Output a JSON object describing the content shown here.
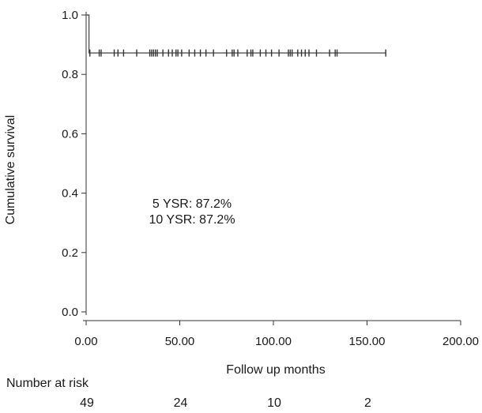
{
  "chart_data": {
    "type": "line",
    "title": "",
    "xlabel": "Follow up months",
    "ylabel": "Cumulative survival",
    "xlim": [
      0,
      200
    ],
    "ylim": [
      0,
      1.0
    ],
    "x_ticks": [
      0,
      50,
      100,
      150,
      200
    ],
    "x_tick_labels": [
      "0.00",
      "50.00",
      "100.00",
      "150.00",
      "200.00"
    ],
    "y_ticks": [
      0.0,
      0.2,
      0.4,
      0.6,
      0.8,
      1.0
    ],
    "y_tick_labels": [
      "0.0",
      "0.2",
      "0.4",
      "0.6",
      "0.8",
      "1.0"
    ],
    "grid": false,
    "series": [
      {
        "survival_steps": [
          {
            "x": 0,
            "y": 1.0
          },
          {
            "x": 1.5,
            "y": 1.0
          },
          {
            "x": 1.5,
            "y": 0.872
          },
          {
            "x": 160,
            "y": 0.872
          }
        ],
        "censored_x": [
          2,
          7,
          8,
          15,
          17,
          20,
          27,
          34,
          35,
          36,
          37,
          38,
          41,
          44,
          46,
          48,
          49,
          51,
          55,
          58,
          61,
          64,
          68,
          75,
          78,
          79,
          81,
          86,
          88,
          89,
          93,
          96,
          99,
          103,
          108,
          109,
          110,
          113,
          115,
          117,
          119,
          123,
          130,
          133,
          134,
          160
        ],
        "censored_y": 0.872
      }
    ],
    "annotations": [
      "5 YSR: 87.2%",
      "10 YSR: 87.2%"
    ],
    "risk_table": {
      "title": "Number at risk",
      "times": [
        0,
        50,
        100,
        150
      ],
      "values": [
        "49",
        "24",
        "10",
        "2"
      ]
    }
  }
}
